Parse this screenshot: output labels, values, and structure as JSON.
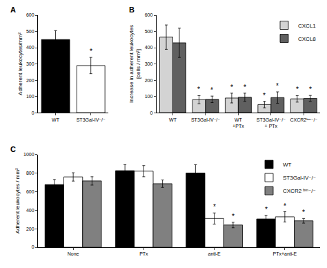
{
  "chart_data": [
    {
      "type": "bar",
      "title": "A",
      "categories": [
        "WT",
        "ST3Gal-IV⁻/⁻"
      ],
      "values": [
        450,
        290
      ],
      "errors": [
        55,
        50
      ],
      "colors": [
        "black",
        "white"
      ],
      "ylabel": "Adherent leukocytes/mm²",
      "ylim": [
        0,
        600
      ],
      "yticks": [
        0,
        100,
        200,
        300,
        400,
        500,
        600
      ],
      "grid": false,
      "annotations": [
        {
          "text": "*",
          "category": "ST3Gal-IV⁻/⁻"
        }
      ]
    },
    {
      "type": "bar",
      "title": "B",
      "categories": [
        "WT",
        "ST3Gal-IV⁻/⁻",
        "WT\n+PTx",
        "ST3Gal-IV⁻/⁻\n+ PTx",
        "CXCR2ᵇᵐ⁻/⁻"
      ],
      "series": [
        {
          "name": "CXCL1",
          "color": "lightgray",
          "values": [
            465,
            80,
            90,
            50,
            85
          ],
          "errors": [
            75,
            25,
            30,
            20,
            20
          ]
        },
        {
          "name": "CXCL8",
          "color": "#606060",
          "values": [
            430,
            82,
            95,
            93,
            88
          ],
          "errors": [
            90,
            20,
            25,
            35,
            18
          ]
        }
      ],
      "ylabel": "Increase in adherent leukocytes\n[cells / mm²]",
      "ylim": [
        0,
        600
      ],
      "yticks": [
        0,
        100,
        200,
        300,
        400,
        500,
        600
      ],
      "grid": false,
      "legend": "upper right",
      "annotations": [
        {
          "text": "*",
          "category": "ST3Gal-IV⁻/⁻",
          "series": "CXCL1"
        },
        {
          "text": "*",
          "category": "ST3Gal-IV⁻/⁻",
          "series": "CXCL8"
        },
        {
          "text": "*",
          "category": "WT\n+PTx",
          "series": "CXCL1"
        },
        {
          "text": "*",
          "category": "WT\n+PTx",
          "series": "CXCL8"
        },
        {
          "text": "*",
          "category": "ST3Gal-IV⁻/⁻\n+ PTx",
          "series": "CXCL1"
        },
        {
          "text": "*",
          "category": "ST3Gal-IV⁻/⁻\n+ PTx",
          "series": "CXCL8"
        },
        {
          "text": "*",
          "category": "CXCR2ᵇᵐ⁻/⁻",
          "series": "CXCL1"
        },
        {
          "text": "*",
          "category": "CXCR2ᵇᵐ⁻/⁻",
          "series": "CXCL8"
        }
      ]
    },
    {
      "type": "bar",
      "title": "C",
      "categories": [
        "None",
        "PTx",
        "anti-E",
        "PTx+anti-E"
      ],
      "series": [
        {
          "name": "WT",
          "color": "black",
          "values": [
            675,
            825,
            800,
            305
          ],
          "errors": [
            55,
            65,
            90,
            40
          ]
        },
        {
          "name": "ST3Gal-IV⁻/⁻",
          "color": "white",
          "values": [
            758,
            820,
            310,
            328
          ],
          "errors": [
            45,
            60,
            60,
            55
          ]
        },
        {
          "name": "CXCR2 ᵇᵐ⁻/⁻",
          "color": "#808080",
          "values": [
            715,
            685,
            240,
            285
          ],
          "errors": [
            45,
            40,
            30,
            25
          ]
        }
      ],
      "ylabel": "Adherent leukocytes / mm²",
      "ylim": [
        0,
        1000
      ],
      "yticks": [
        0,
        200,
        400,
        600,
        800,
        1000
      ],
      "grid": false,
      "legend": "upper right",
      "annotations": [
        {
          "text": "*",
          "category": "PTx+anti-E",
          "series": "WT"
        },
        {
          "text": "*",
          "category": "anti-E",
          "series": "ST3Gal-IV⁻/⁻"
        },
        {
          "text": "*",
          "category": "PTx+anti-E",
          "series": "ST3Gal-IV⁻/⁻"
        },
        {
          "text": "*",
          "category": "anti-E",
          "series": "CXCR2 ᵇᵐ⁻/⁻"
        },
        {
          "text": "*",
          "category": "PTx+anti-E",
          "series": "CXCR2 ᵇᵐ⁻/⁻"
        }
      ]
    }
  ]
}
